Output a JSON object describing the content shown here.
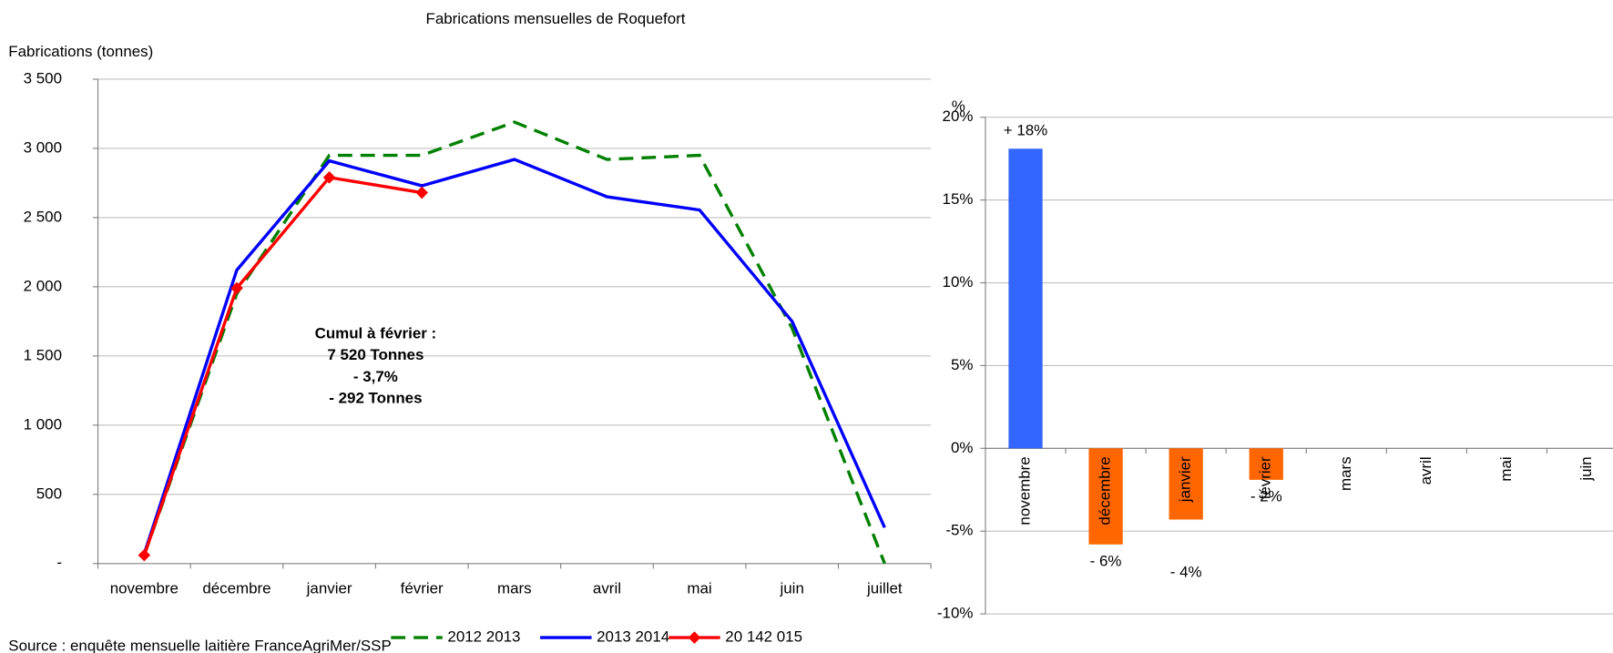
{
  "source": "Source : enquête mensuelle laitière FranceAgriMer/SSP",
  "chart_data": [
    {
      "type": "line",
      "title": "Fabrications mensuelles de Roquefort",
      "y_label": "Fabrications (tonnes)",
      "categories": [
        "novembre",
        "décembre",
        "janvier",
        "février",
        "mars",
        "avril",
        "mai",
        "juin",
        "juillet"
      ],
      "series": [
        {
          "name": "2012 2013",
          "color": "#008000",
          "dashed": true,
          "values": [
            60,
            1950,
            2950,
            2950,
            3190,
            2920,
            2950,
            1700,
            0
          ]
        },
        {
          "name": "2013 2014",
          "color": "#0000ff",
          "values": [
            70,
            2120,
            2910,
            2730,
            2920,
            2650,
            2555,
            1750,
            260
          ]
        },
        {
          "name": "20 142 015",
          "color": "#ff0000",
          "marker": "diamond",
          "values": [
            60,
            1990,
            2790,
            2680,
            null,
            null,
            null,
            null,
            null
          ]
        }
      ],
      "ylim": [
        0,
        3500
      ],
      "yticks": [
        {
          "value": 0,
          "label": "-"
        },
        500,
        {
          "value": 1000,
          "label": "1 000"
        },
        {
          "value": 1500,
          "label": "1 500"
        },
        {
          "value": 2000,
          "label": "2 000"
        },
        {
          "value": 2500,
          "label": "2 500"
        },
        {
          "value": 3000,
          "label": "3 000"
        },
        {
          "value": 3500,
          "label": "3 500"
        }
      ],
      "grid": true,
      "legend": "bottom",
      "annotation": [
        "Cumul à février :",
        "7 520 Tonnes",
        "- 3,7%",
        "- 292 Tonnes"
      ],
      "annotation_color": "#ff0000"
    },
    {
      "type": "bar",
      "y_label": "%",
      "categories": [
        "novembre",
        "décembre",
        "janvier",
        "février",
        "mars",
        "avril",
        "mai",
        "juin"
      ],
      "values": [
        18.1,
        -5.8,
        -4.3,
        -1.9,
        null,
        null,
        null,
        null
      ],
      "value_labels": [
        "+ 18%",
        "- 6%",
        "- 4%",
        "- 2%",
        null,
        null,
        null,
        null
      ],
      "positive_color": "#3366ff",
      "negative_color": "#ff6600",
      "positive_label_color": "#0000cc",
      "negative_label_color": "#ff0000",
      "ylim": [
        -10,
        20
      ],
      "yticks": [
        {
          "value": -10,
          "label": "-10%"
        },
        {
          "value": -5,
          "label": "-5%"
        },
        {
          "value": 0,
          "label": "0%"
        },
        {
          "value": 5,
          "label": "5%"
        },
        {
          "value": 10,
          "label": "10%"
        },
        {
          "value": 15,
          "label": "15%"
        },
        {
          "value": 20,
          "label": "20%"
        }
      ],
      "grid": true
    }
  ]
}
